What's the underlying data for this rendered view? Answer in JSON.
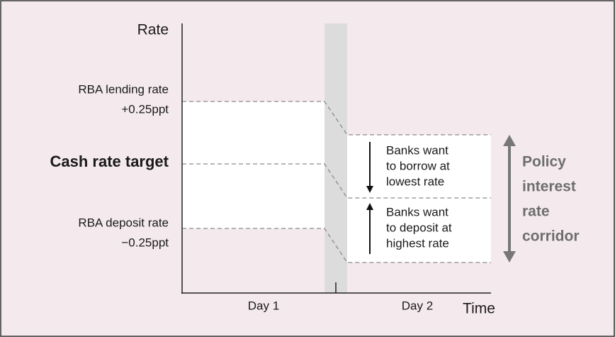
{
  "axes": {
    "y_label": "Rate",
    "x_label": "Time"
  },
  "levels": [
    {
      "lines": [
        "RBA lending rate",
        "+0.25ppt"
      ]
    },
    {
      "lines": [
        "Cash rate target"
      ]
    },
    {
      "lines": [
        "RBA deposit rate",
        "−0.25ppt"
      ]
    }
  ],
  "days": [
    "Day 1",
    "Day 2"
  ],
  "annotations": [
    {
      "lines": [
        "Banks want",
        "to borrow at",
        "lowest rate"
      ]
    },
    {
      "lines": [
        "Banks want",
        "to deposit at",
        "highest rate"
      ]
    }
  ],
  "corridor": {
    "lines": [
      "Policy",
      "interest",
      "rate",
      "corridor"
    ]
  }
}
